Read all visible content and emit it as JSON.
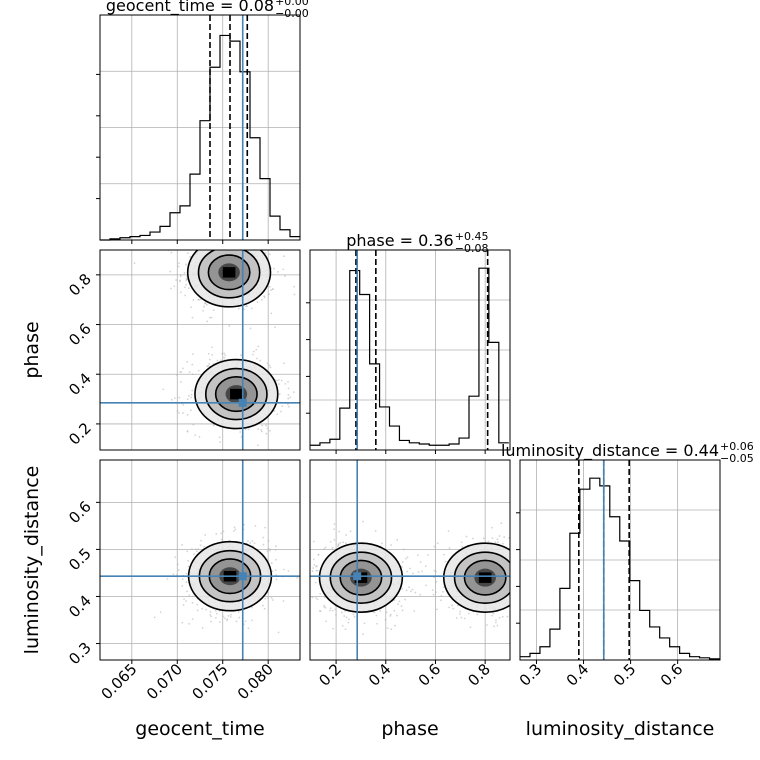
{
  "chart_data": {
    "type": "corner",
    "parameters": [
      "geocent_time",
      "phase",
      "luminosity_distance"
    ],
    "truths": {
      "geocent_time": 0.0772,
      "phase": 0.285,
      "luminosity_distance": 0.443
    },
    "titles": [
      {
        "param": "geocent_time",
        "main": "geocent_time = 0.08",
        "upper": "+0.00",
        "lower": "−0.00"
      },
      {
        "param": "phase",
        "main": "phase = 0.36",
        "upper": "+0.45",
        "lower": "−0.08"
      },
      {
        "param": "luminosity_distance",
        "main": "luminosity_distance = 0.44",
        "upper": "+0.06",
        "lower": "−0.05"
      }
    ],
    "axis_labels": {
      "geocent_time": "geocent_time",
      "phase": "phase",
      "luminosity_distance": "luminosity_distance"
    },
    "ranges": {
      "geocent_time": [
        0.0615,
        0.0835
      ],
      "phase": [
        0.095,
        0.9
      ],
      "luminosity_distance": [
        0.265,
        0.69
      ]
    },
    "ticks": {
      "geocent_time": [
        "0.065",
        "0.070",
        "0.075",
        "0.080"
      ],
      "phase": [
        "0.2",
        "0.4",
        "0.6",
        "0.8"
      ],
      "luminosity_distance": [
        "0.3",
        "0.4",
        "0.5",
        "0.6"
      ]
    },
    "histograms": {
      "geocent_time": {
        "bin_edges": [
          0.0615,
          0.0626,
          0.0637,
          0.0648,
          0.0659,
          0.067,
          0.0681,
          0.0692,
          0.0703,
          0.0714,
          0.0725,
          0.0736,
          0.0747,
          0.0758,
          0.0769,
          0.078,
          0.0791,
          0.0802,
          0.0813,
          0.0824,
          0.0835
        ],
        "counts": [
          0,
          1,
          2,
          3,
          4,
          7,
          12,
          24,
          30,
          58,
          105,
          152,
          180,
          175,
          148,
          90,
          54,
          21,
          9,
          3
        ],
        "quantiles": [
          0.0736,
          0.0758,
          0.0777
        ]
      },
      "phase": {
        "bin_edges": [
          0.095,
          0.135,
          0.175,
          0.215,
          0.255,
          0.295,
          0.335,
          0.375,
          0.415,
          0.455,
          0.495,
          0.535,
          0.575,
          0.615,
          0.655,
          0.695,
          0.735,
          0.775,
          0.815,
          0.855,
          0.895
        ],
        "counts": [
          4,
          6,
          9,
          35,
          150,
          130,
          72,
          36,
          20,
          8,
          6,
          5,
          4,
          4,
          5,
          10,
          45,
          152,
          90,
          6
        ],
        "quantiles": [
          0.28,
          0.36,
          0.81
        ]
      },
      "luminosity_distance": {
        "bin_edges": [
          0.265,
          0.2862,
          0.3074,
          0.3286,
          0.3498,
          0.371,
          0.3922,
          0.4134,
          0.4346,
          0.4558,
          0.477,
          0.4982,
          0.5194,
          0.5406,
          0.5618,
          0.583,
          0.6042,
          0.6254,
          0.6466,
          0.6678,
          0.689
        ],
        "counts": [
          3,
          6,
          12,
          28,
          65,
          115,
          155,
          165,
          158,
          130,
          108,
          72,
          45,
          30,
          20,
          12,
          6,
          3,
          2,
          1
        ],
        "quantiles": [
          0.39,
          0.443,
          0.497
        ]
      }
    },
    "density_modes": [
      {
        "x": "geocent_time",
        "y": "phase",
        "modes": [
          [
            0.0757,
            0.81
          ],
          [
            0.0765,
            0.32
          ]
        ]
      },
      {
        "x": "geocent_time",
        "y": "luminosity_distance",
        "modes": [
          [
            0.0758,
            0.443
          ]
        ]
      },
      {
        "x": "phase",
        "y": "luminosity_distance",
        "modes": [
          [
            0.3,
            0.44
          ],
          [
            0.8,
            0.44
          ]
        ]
      }
    ],
    "grid": true,
    "truth_color": "#4682b4",
    "line_color": "#000000",
    "scatter_color": "#b0b0b0"
  }
}
